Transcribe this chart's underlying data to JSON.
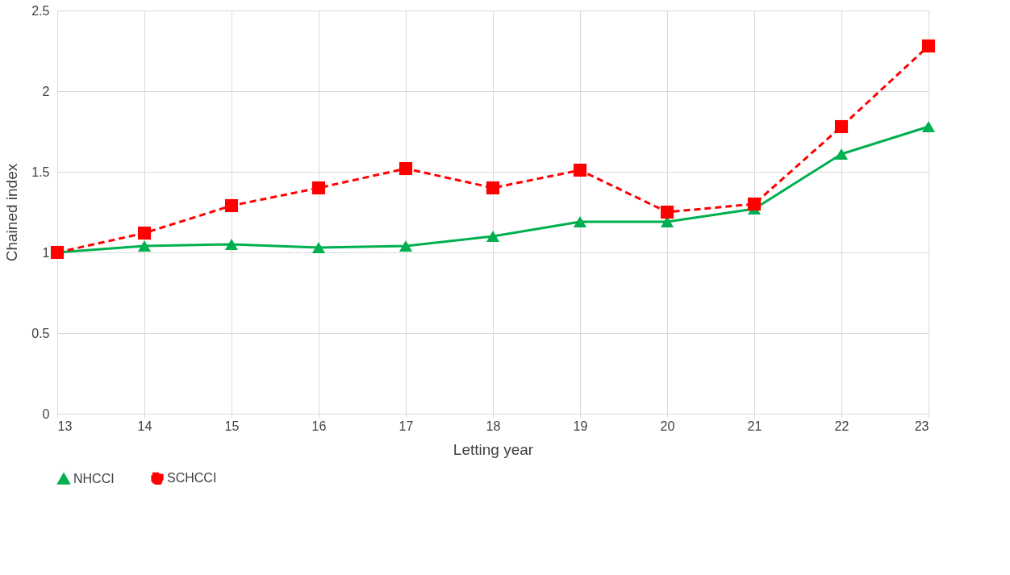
{
  "chart_data": {
    "type": "line",
    "xlabel": "Letting year",
    "ylabel": "Chained index",
    "x": [
      13,
      14,
      15,
      16,
      17,
      18,
      19,
      20,
      21,
      22,
      23
    ],
    "xlim": [
      13,
      23
    ],
    "xticks": [
      13,
      14,
      15,
      16,
      17,
      18,
      19,
      20,
      21,
      22,
      23
    ],
    "ylim": [
      0,
      2.5
    ],
    "yticks": [
      0,
      0.5,
      1,
      1.5,
      2,
      2.5
    ],
    "grid": true,
    "legend": "bottom",
    "series": [
      {
        "name": "NHCCI",
        "color": "#00b050",
        "marker": "triangle",
        "line_style": "solid",
        "values": [
          1.0,
          1.04,
          1.05,
          1.03,
          1.04,
          1.1,
          1.19,
          1.19,
          1.27,
          1.61,
          1.78
        ]
      },
      {
        "name": "SCHCCI",
        "color": "#ff0000",
        "marker": "square",
        "line_style": "dashed",
        "values": [
          1.0,
          1.12,
          1.29,
          1.4,
          1.52,
          1.4,
          1.51,
          1.25,
          1.3,
          1.78,
          2.28
        ]
      }
    ]
  }
}
